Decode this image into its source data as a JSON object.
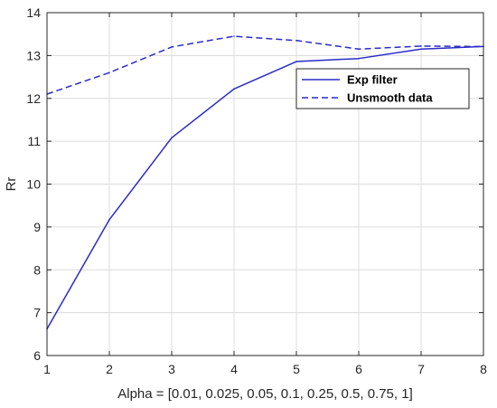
{
  "chart_data": {
    "type": "line",
    "x": [
      1,
      2,
      3,
      4,
      5,
      6,
      7,
      8
    ],
    "series": [
      {
        "name": "Exp filter",
        "style": "solid",
        "color": "#2b2bc8",
        "values": [
          6.62,
          9.17,
          11.08,
          12.22,
          12.86,
          12.93,
          13.15,
          13.21
        ]
      },
      {
        "name": "Unsmooth data",
        "style": "dashed",
        "color": "#2b2bc8",
        "values": [
          12.1,
          12.6,
          13.2,
          13.45,
          13.35,
          13.15,
          13.22,
          13.21
        ]
      }
    ],
    "xlabel": "Alpha = [0.01, 0.025, 0.05, 0.1, 0.25, 0.5, 0.75, 1]",
    "ylabel": "Rr",
    "xlim": [
      1,
      8
    ],
    "ylim": [
      6,
      14
    ],
    "xticks": [
      1,
      2,
      3,
      4,
      5,
      6,
      7,
      8
    ],
    "yticks": [
      6,
      7,
      8,
      9,
      10,
      11,
      12,
      13,
      14
    ],
    "grid": true,
    "legend_position": "top-right"
  }
}
